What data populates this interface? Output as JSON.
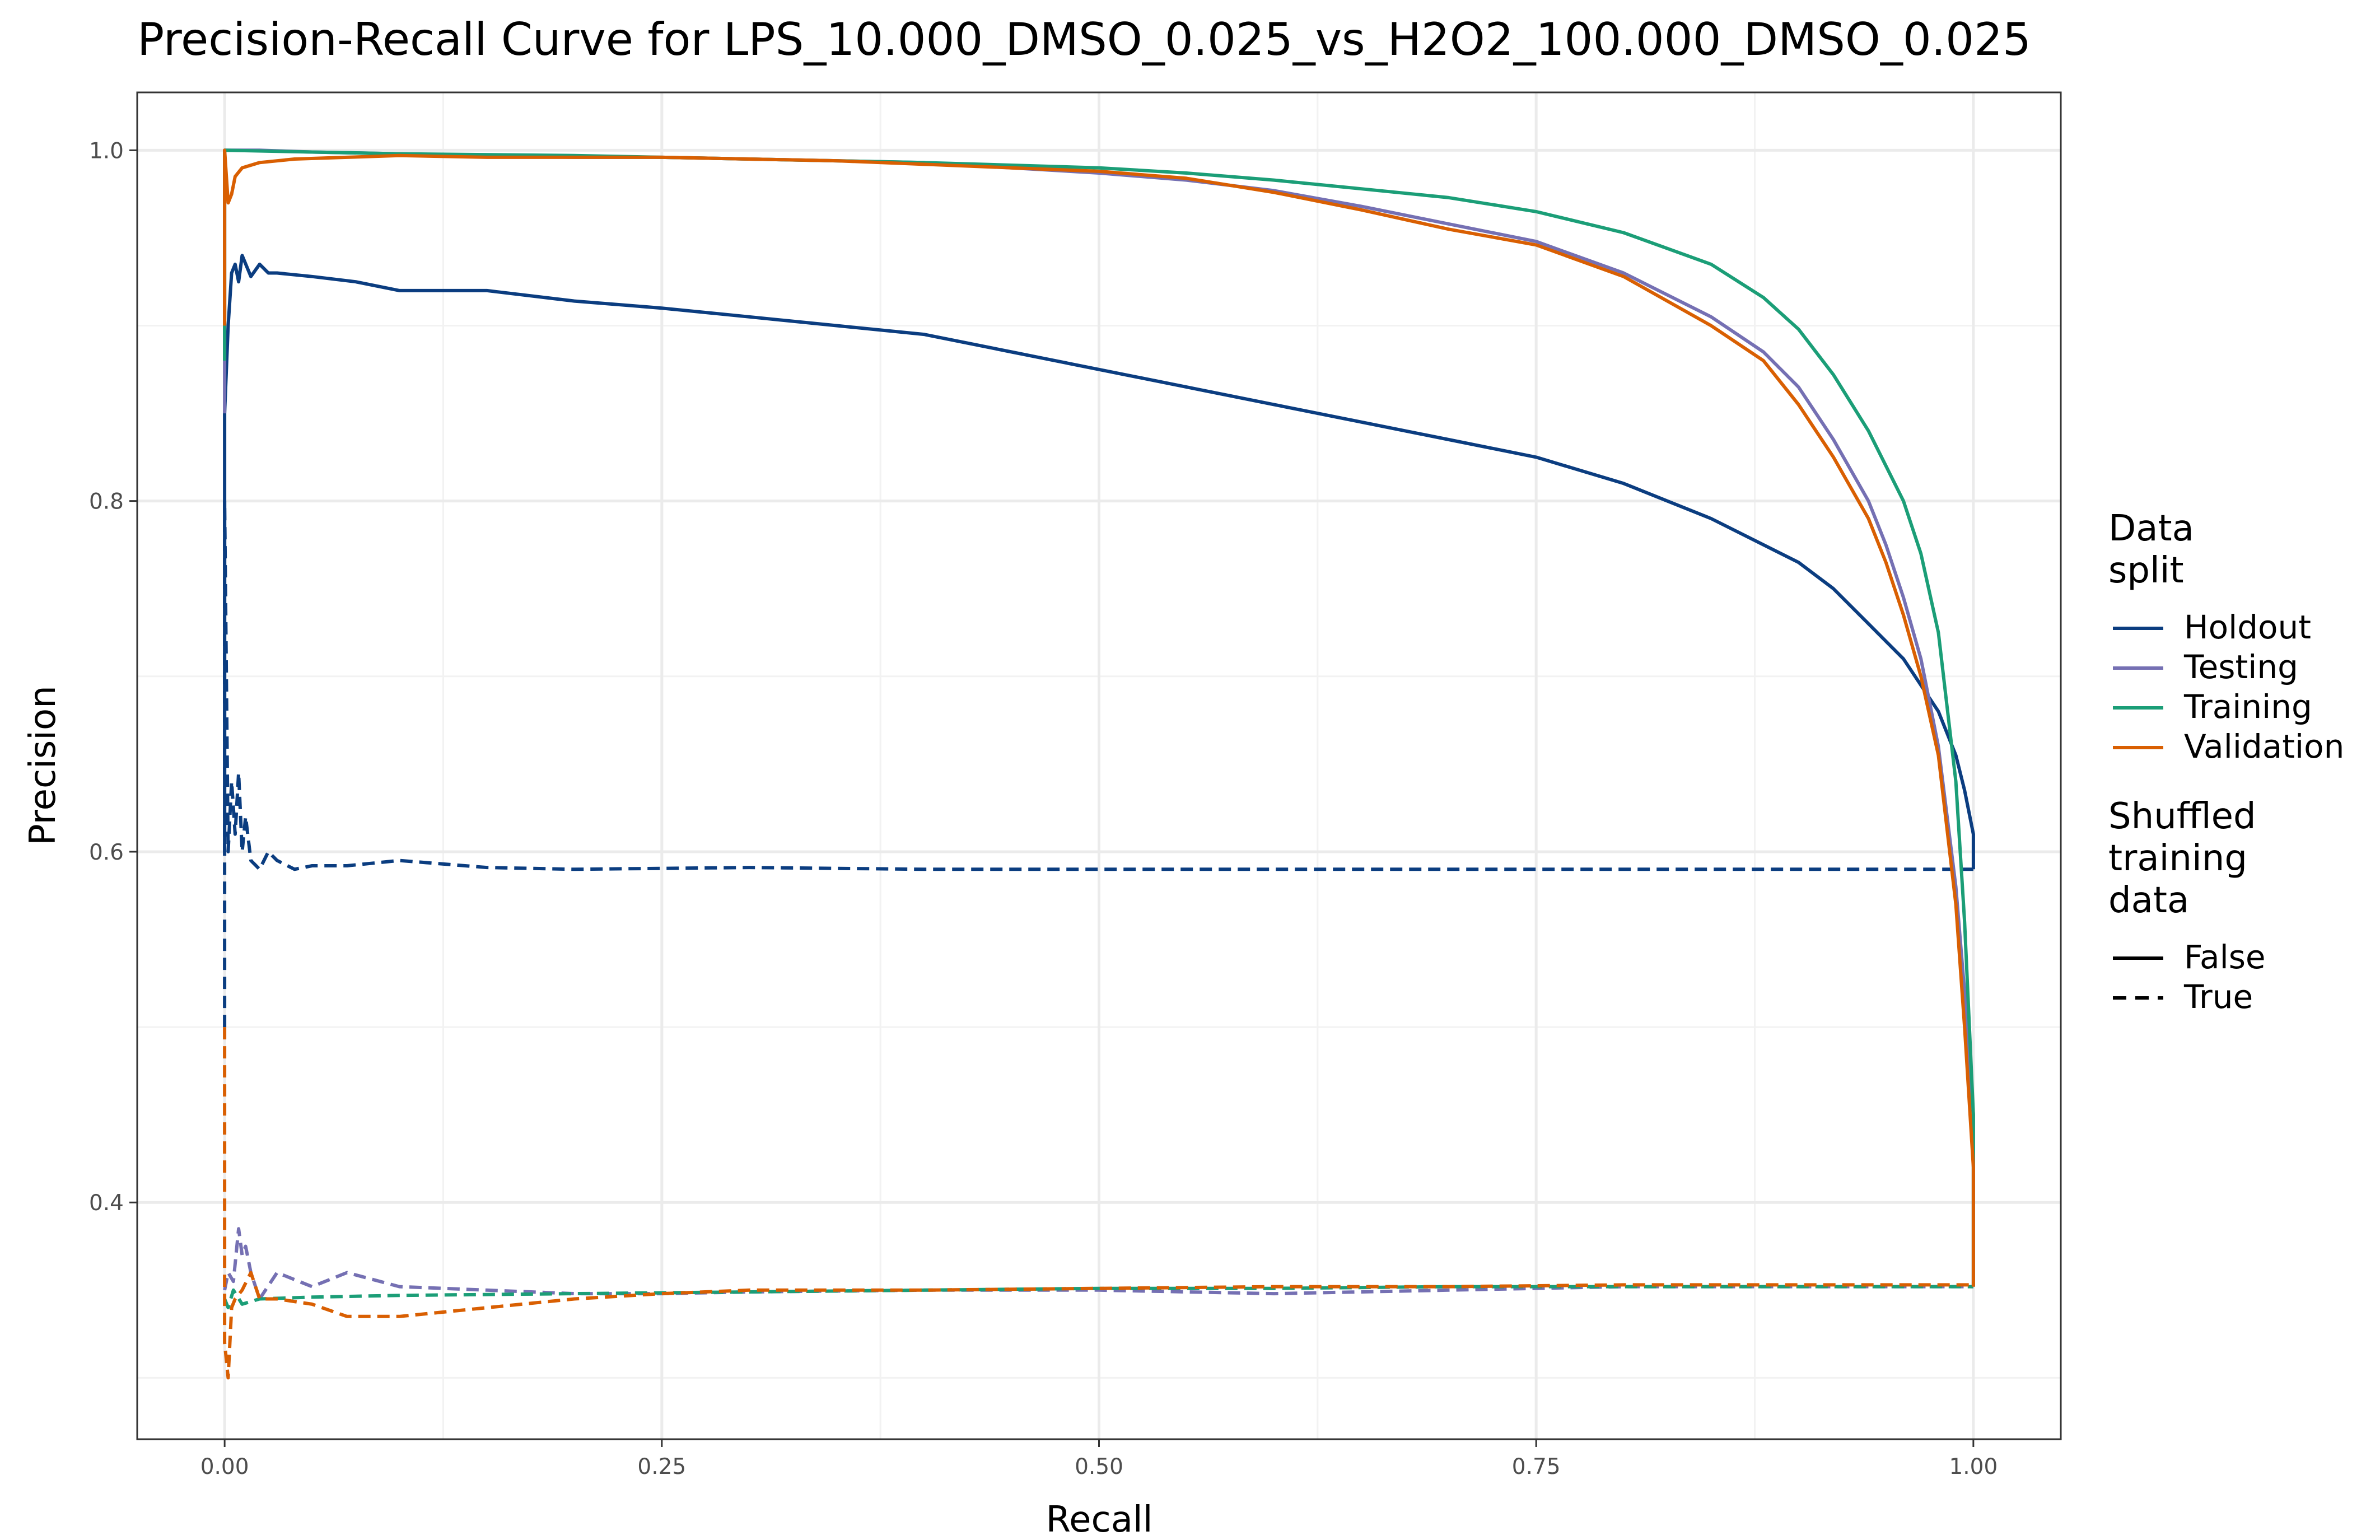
{
  "chart_data": {
    "type": "line",
    "title": "Precision-Recall Curve for LPS_10.000_DMSO_0.025_vs_H2O2_100.000_DMSO_0.025",
    "xlabel": "Recall",
    "ylabel": "Precision",
    "xlim": [
      -0.05,
      1.05
    ],
    "ylim": [
      0.265,
      1.033
    ],
    "xticks": [
      0.0,
      0.25,
      0.5,
      0.75,
      1.0
    ],
    "xtick_labels": [
      "0.00",
      "0.25",
      "0.50",
      "0.75",
      "1.00"
    ],
    "yticks": [
      0.4,
      0.6,
      0.8,
      1.0
    ],
    "ytick_labels": [
      "0.4",
      "0.6",
      "0.8",
      "1.0"
    ],
    "grid": true,
    "legend_position": "right",
    "legend": {
      "color_title": [
        "Data",
        "split"
      ],
      "linetype_title": [
        "Shuffled",
        "training",
        "data"
      ],
      "color_entries": [
        {
          "label": "Holdout",
          "color": "#0b3d80"
        },
        {
          "label": "Testing",
          "color": "#7570b3"
        },
        {
          "label": "Training",
          "color": "#1b9e77"
        },
        {
          "label": "Validation",
          "color": "#d95f02"
        }
      ],
      "linetype_entries": [
        {
          "label": "False",
          "dash": "solid"
        },
        {
          "label": "True",
          "dash": "dashed"
        }
      ]
    },
    "series": [
      {
        "split": "Holdout",
        "shuffled": "False",
        "color": "#0b3d80",
        "dash": "solid",
        "x": [
          0.0,
          0.0,
          0.002,
          0.004,
          0.006,
          0.008,
          0.01,
          0.015,
          0.02,
          0.025,
          0.03,
          0.05,
          0.075,
          0.1,
          0.15,
          0.2,
          0.25,
          0.3,
          0.35,
          0.4,
          0.45,
          0.5,
          0.55,
          0.6,
          0.65,
          0.7,
          0.75,
          0.8,
          0.85,
          0.9,
          0.92,
          0.94,
          0.96,
          0.97,
          0.98,
          0.99,
          0.995,
          1.0,
          1.0
        ],
        "y": [
          0.6,
          0.85,
          0.9,
          0.93,
          0.935,
          0.925,
          0.94,
          0.928,
          0.935,
          0.93,
          0.93,
          0.928,
          0.925,
          0.92,
          0.92,
          0.914,
          0.91,
          0.905,
          0.9,
          0.895,
          0.885,
          0.875,
          0.865,
          0.855,
          0.845,
          0.835,
          0.825,
          0.81,
          0.79,
          0.765,
          0.75,
          0.73,
          0.71,
          0.695,
          0.68,
          0.655,
          0.635,
          0.61,
          0.59
        ]
      },
      {
        "split": "Testing",
        "shuffled": "False",
        "color": "#7570b3",
        "dash": "solid",
        "x": [
          0.0,
          0.0,
          0.02,
          0.05,
          0.1,
          0.15,
          0.2,
          0.25,
          0.3,
          0.35,
          0.4,
          0.45,
          0.5,
          0.55,
          0.6,
          0.65,
          0.7,
          0.75,
          0.8,
          0.85,
          0.88,
          0.9,
          0.92,
          0.94,
          0.95,
          0.96,
          0.97,
          0.98,
          0.99,
          0.995,
          1.0,
          1.0
        ],
        "y": [
          0.85,
          1.0,
          1.0,
          0.999,
          0.998,
          0.997,
          0.996,
          0.996,
          0.995,
          0.994,
          0.993,
          0.99,
          0.987,
          0.983,
          0.977,
          0.968,
          0.958,
          0.948,
          0.93,
          0.905,
          0.885,
          0.865,
          0.835,
          0.8,
          0.775,
          0.745,
          0.71,
          0.66,
          0.58,
          0.52,
          0.45,
          0.352
        ]
      },
      {
        "split": "Training",
        "shuffled": "False",
        "color": "#1b9e77",
        "dash": "solid",
        "x": [
          0.0,
          0.0,
          0.05,
          0.1,
          0.2,
          0.3,
          0.4,
          0.5,
          0.55,
          0.6,
          0.65,
          0.7,
          0.75,
          0.8,
          0.85,
          0.88,
          0.9,
          0.92,
          0.94,
          0.96,
          0.97,
          0.98,
          0.99,
          0.995,
          1.0,
          1.0
        ],
        "y": [
          0.88,
          1.0,
          0.999,
          0.998,
          0.997,
          0.995,
          0.993,
          0.99,
          0.987,
          0.983,
          0.978,
          0.973,
          0.965,
          0.953,
          0.935,
          0.916,
          0.898,
          0.872,
          0.84,
          0.8,
          0.77,
          0.725,
          0.64,
          0.56,
          0.45,
          0.352
        ]
      },
      {
        "split": "Validation",
        "shuffled": "False",
        "color": "#d95f02",
        "dash": "solid",
        "x": [
          0.0,
          0.0,
          0.002,
          0.004,
          0.006,
          0.01,
          0.02,
          0.04,
          0.07,
          0.1,
          0.15,
          0.2,
          0.25,
          0.3,
          0.35,
          0.4,
          0.45,
          0.5,
          0.55,
          0.6,
          0.65,
          0.7,
          0.75,
          0.8,
          0.85,
          0.88,
          0.9,
          0.92,
          0.94,
          0.95,
          0.96,
          0.97,
          0.98,
          0.99,
          0.995,
          1.0,
          1.0
        ],
        "y": [
          0.9,
          1.0,
          0.97,
          0.975,
          0.985,
          0.99,
          0.993,
          0.995,
          0.996,
          0.997,
          0.996,
          0.996,
          0.996,
          0.995,
          0.994,
          0.992,
          0.99,
          0.988,
          0.984,
          0.976,
          0.966,
          0.955,
          0.946,
          0.928,
          0.9,
          0.88,
          0.855,
          0.825,
          0.79,
          0.765,
          0.735,
          0.7,
          0.655,
          0.57,
          0.5,
          0.42,
          0.352
        ]
      },
      {
        "split": "Holdout",
        "shuffled": "True",
        "color": "#0b3d80",
        "dash": "dashed",
        "x": [
          0.0,
          0.0,
          0.002,
          0.004,
          0.006,
          0.008,
          0.01,
          0.012,
          0.015,
          0.02,
          0.025,
          0.03,
          0.04,
          0.05,
          0.07,
          0.1,
          0.15,
          0.2,
          0.3,
          0.4,
          0.5,
          0.6,
          0.7,
          0.8,
          0.9,
          1.0
        ],
        "y": [
          0.5,
          0.8,
          0.6,
          0.64,
          0.61,
          0.645,
          0.6,
          0.62,
          0.595,
          0.59,
          0.6,
          0.595,
          0.59,
          0.592,
          0.592,
          0.595,
          0.591,
          0.59,
          0.591,
          0.59,
          0.59,
          0.59,
          0.59,
          0.59,
          0.59,
          0.59
        ]
      },
      {
        "split": "Testing",
        "shuffled": "True",
        "color": "#7570b3",
        "dash": "dashed",
        "x": [
          0.0,
          0.002,
          0.005,
          0.008,
          0.01,
          0.012,
          0.015,
          0.02,
          0.03,
          0.05,
          0.07,
          0.1,
          0.15,
          0.2,
          0.25,
          0.3,
          0.4,
          0.5,
          0.6,
          0.7,
          0.8,
          0.9,
          1.0
        ],
        "y": [
          0.35,
          0.36,
          0.355,
          0.385,
          0.37,
          0.375,
          0.36,
          0.345,
          0.36,
          0.352,
          0.36,
          0.352,
          0.35,
          0.348,
          0.348,
          0.349,
          0.35,
          0.35,
          0.348,
          0.35,
          0.352,
          0.352,
          0.352
        ]
      },
      {
        "split": "Training",
        "shuffled": "True",
        "color": "#1b9e77",
        "dash": "dashed",
        "x": [
          0.0,
          0.002,
          0.005,
          0.01,
          0.02,
          0.05,
          0.1,
          0.2,
          0.3,
          0.4,
          0.5,
          0.6,
          0.7,
          0.8,
          0.9,
          1.0
        ],
        "y": [
          0.345,
          0.34,
          0.35,
          0.342,
          0.345,
          0.346,
          0.347,
          0.348,
          0.349,
          0.35,
          0.351,
          0.351,
          0.352,
          0.352,
          0.352,
          0.352
        ]
      },
      {
        "split": "Validation",
        "shuffled": "True",
        "color": "#d95f02",
        "dash": "dashed",
        "x": [
          0.0,
          0.0,
          0.002,
          0.004,
          0.006,
          0.01,
          0.015,
          0.02,
          0.03,
          0.05,
          0.07,
          0.1,
          0.13,
          0.17,
          0.2,
          0.25,
          0.3,
          0.4,
          0.5,
          0.6,
          0.7,
          0.8,
          0.9,
          1.0
        ],
        "y": [
          0.5,
          0.32,
          0.3,
          0.34,
          0.345,
          0.35,
          0.36,
          0.345,
          0.345,
          0.342,
          0.335,
          0.335,
          0.338,
          0.342,
          0.345,
          0.348,
          0.35,
          0.35,
          0.351,
          0.352,
          0.352,
          0.353,
          0.353,
          0.353
        ]
      }
    ]
  }
}
